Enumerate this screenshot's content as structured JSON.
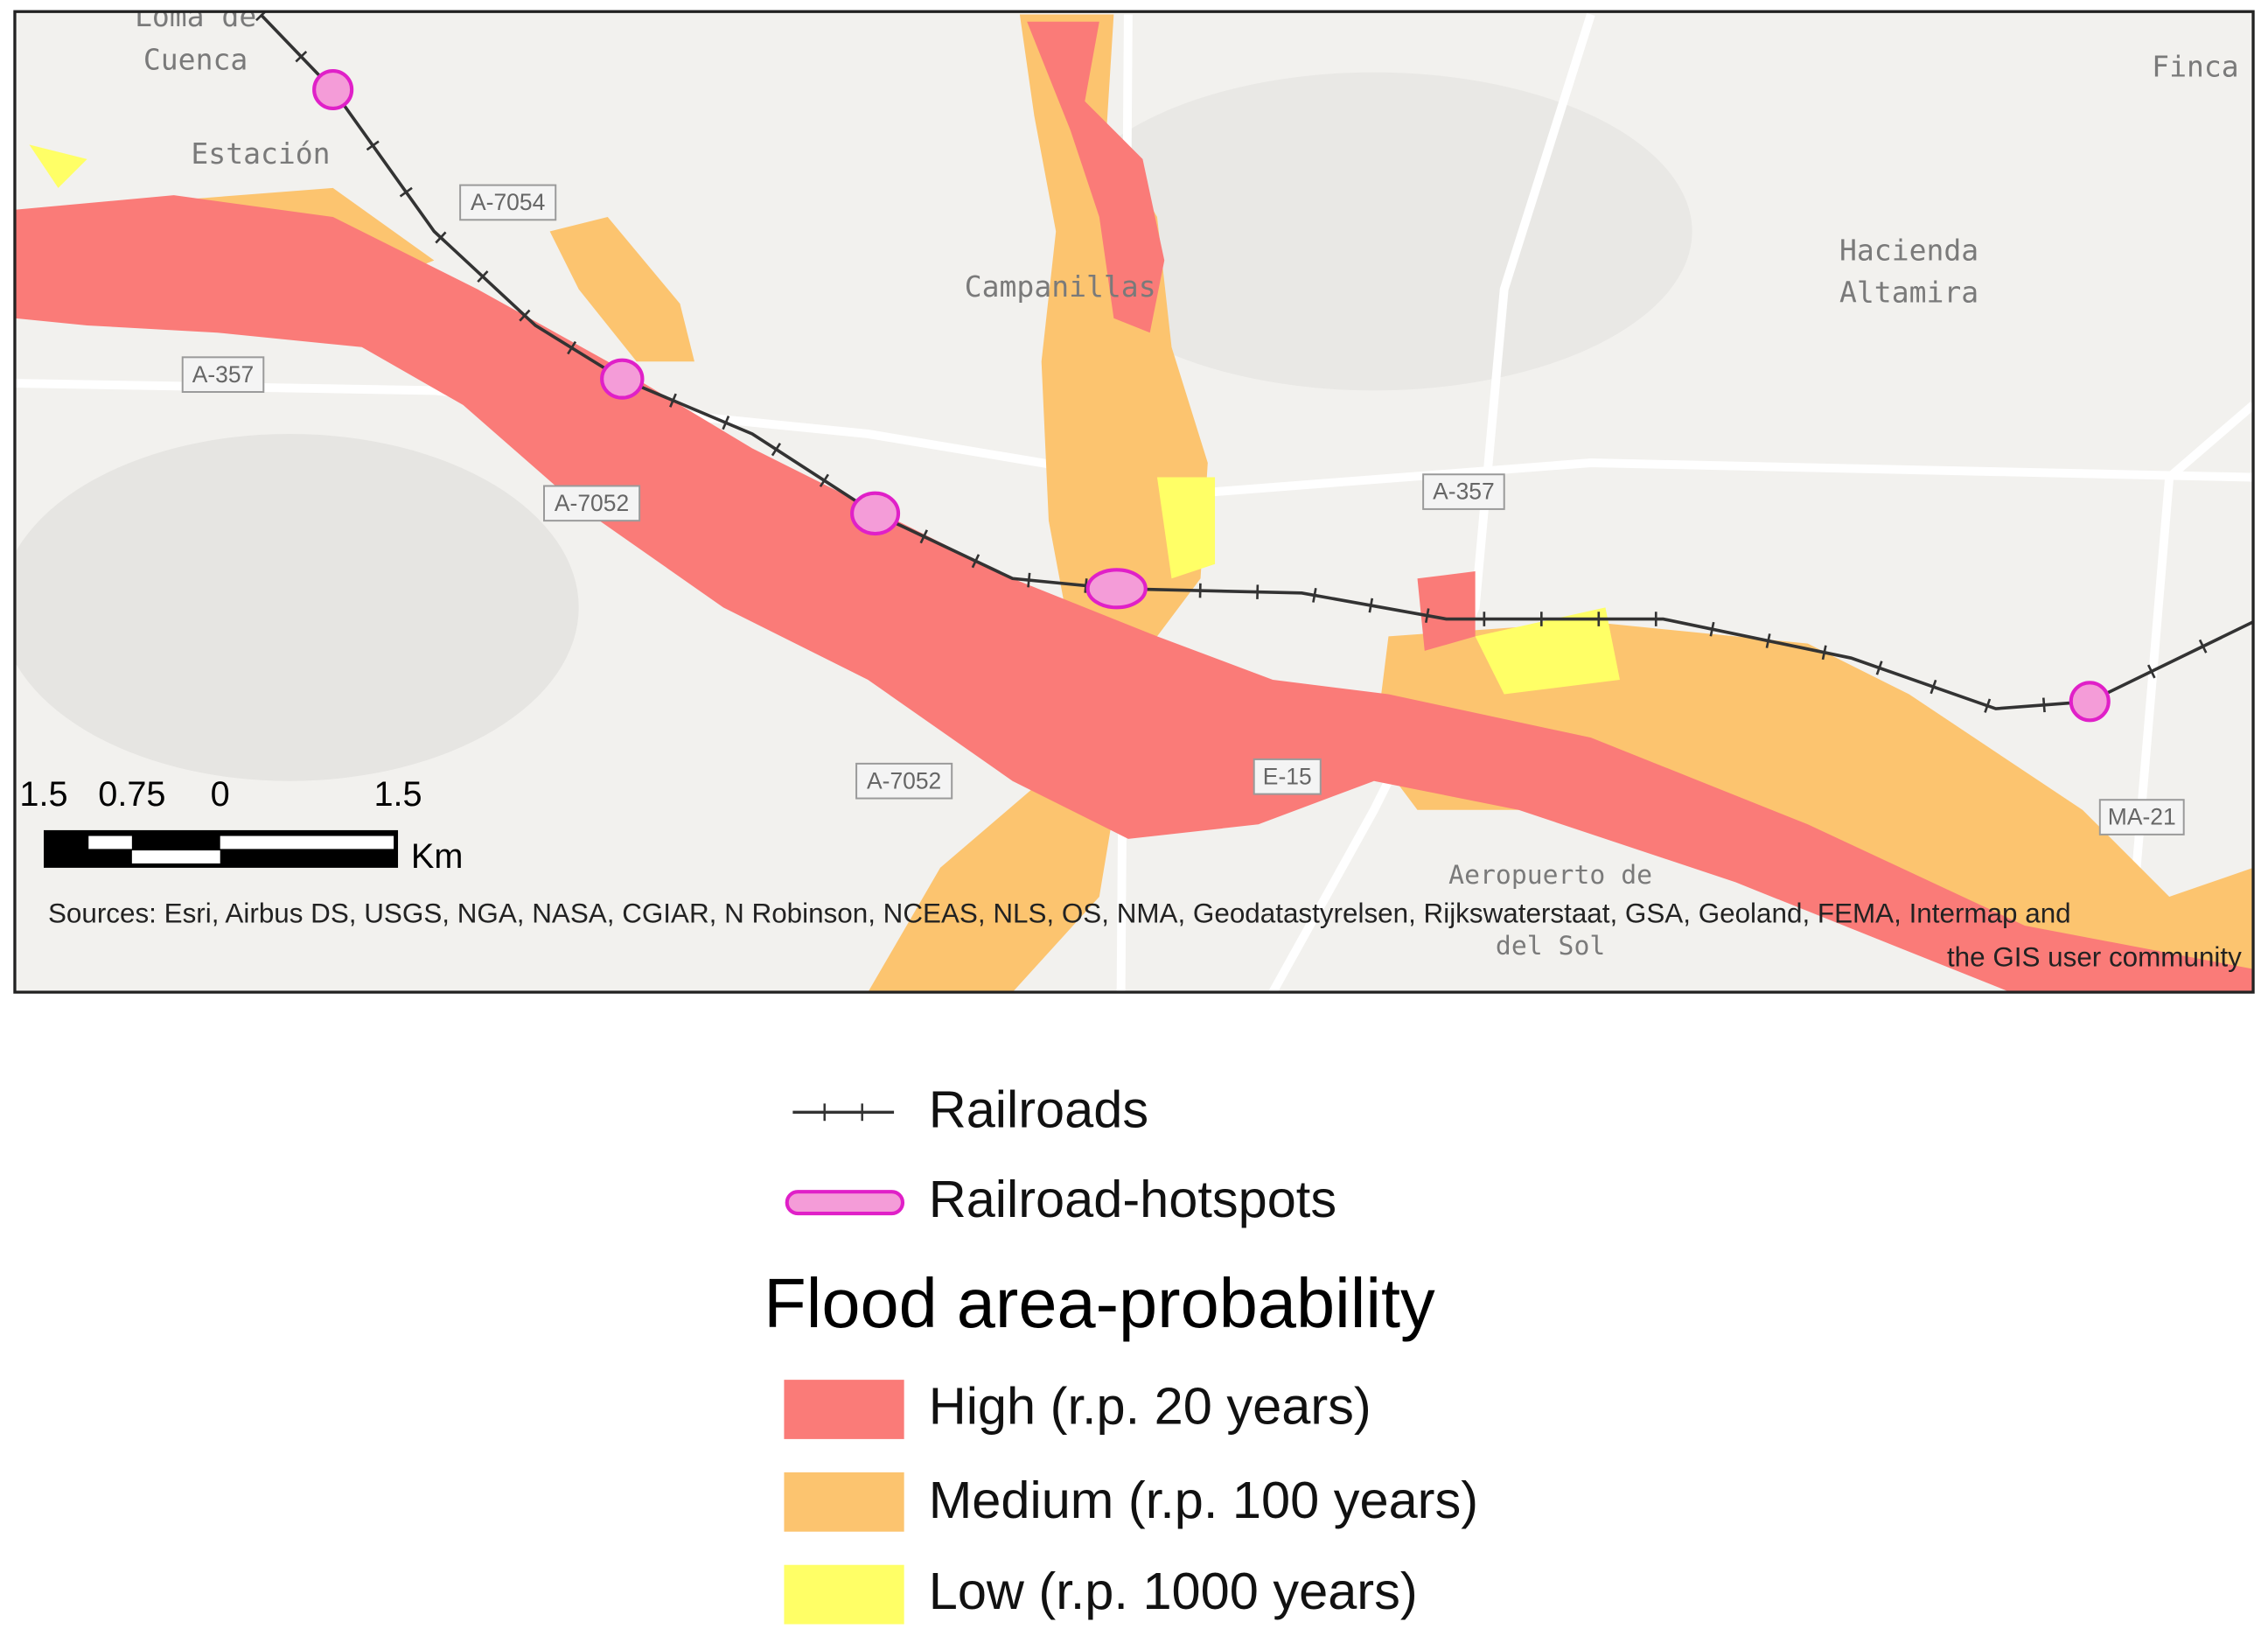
{
  "map": {
    "place_labels": [
      "Loma de",
      "Cuenca",
      "Estación",
      "Campanillas",
      "Hacienda",
      "Altamira",
      "Finca",
      "Aeropuerto de",
      "del Sol"
    ],
    "road_labels": [
      "A-7054",
      "A-357",
      "A-7052",
      "A-357",
      "A-7052",
      "E-15",
      "MA-21"
    ],
    "scale_bar": {
      "labels": [
        "1.5",
        "0.75",
        "0",
        "1.5"
      ],
      "unit": "Km"
    },
    "sources": [
      "Sources: Esri, Airbus DS, USGS, NGA, NASA, CGIAR, N Robinson, NCEAS, NLS, OS, NMA, Geodatastyrelsen, Rijkswaterstaat, GSA, Geoland, FEMA, Intermap and",
      "the GIS user community"
    ]
  },
  "legend": {
    "lines": [
      "Railroads",
      "Railroad-hotspots"
    ],
    "title": "Flood area-probability",
    "items": [
      {
        "label": "High (r.p. 20 years)",
        "color": "#fa7b78"
      },
      {
        "label": "Medium (r.p. 100 years)",
        "color": "#fcc46f"
      },
      {
        "label": "Low (r.p. 1000 years)",
        "color": "#ffff66"
      }
    ]
  }
}
